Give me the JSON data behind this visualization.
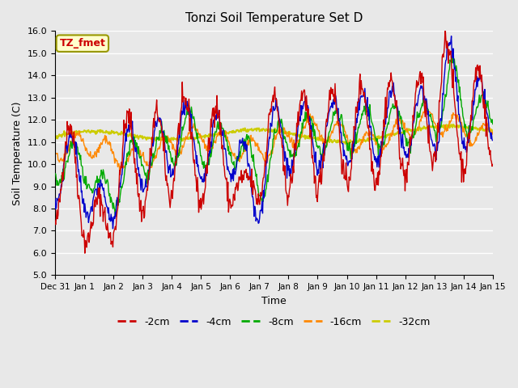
{
  "title": "Tonzi Soil Temperature Set D",
  "xlabel": "Time",
  "ylabel": "Soil Temperature (C)",
  "ylim": [
    5.0,
    16.0
  ],
  "yticks": [
    5.0,
    6.0,
    7.0,
    8.0,
    9.0,
    10.0,
    11.0,
    12.0,
    13.0,
    14.0,
    15.0,
    16.0
  ],
  "colors": {
    "-2cm": "#cc0000",
    "-4cm": "#0000cc",
    "-8cm": "#00aa00",
    "-16cm": "#ff8800",
    "-32cm": "#cccc00"
  },
  "legend_labels": [
    "-2cm",
    "-4cm",
    "-8cm",
    "-16cm",
    "-32cm"
  ],
  "annotation_text": "TZ_fmet",
  "annotation_color": "#cc0000",
  "annotation_bg": "#ffffcc",
  "annotation_border": "#999900",
  "background_color": "#e8e8e8",
  "grid_color": "#ffffff",
  "x_tick_labels": [
    "Dec 31",
    "Jan 1",
    "Jan 2",
    "Jan 3",
    "Jan 4",
    "Jan 5",
    "Jan 6",
    "Jan 7",
    "Jan 8",
    "Jan 9",
    "Jan 10",
    "Jan 11",
    "Jan 12",
    "Jan 13",
    "Jan 14",
    "Jan 15"
  ],
  "x_tick_positions": [
    0,
    1,
    2,
    3,
    4,
    5,
    6,
    7,
    8,
    9,
    10,
    11,
    12,
    13,
    14,
    15
  ],
  "num_points_per_day": 48,
  "n_days": 15
}
